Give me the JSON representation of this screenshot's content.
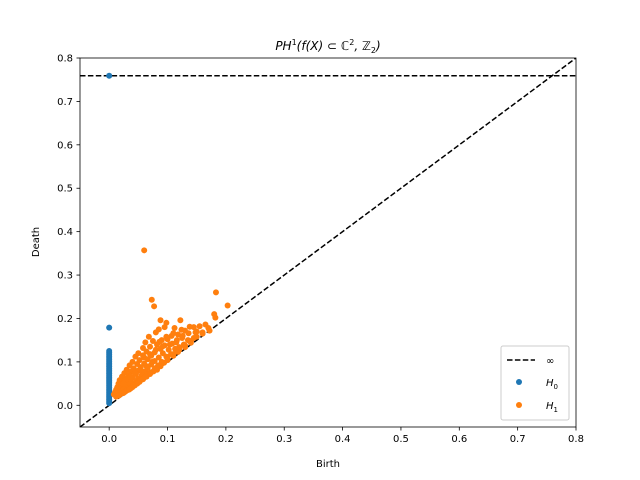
{
  "chart_data": {
    "type": "scatter",
    "title_parts": [
      "PH",
      "1",
      "(f(X) ⊂ ℂ",
      "2",
      ", ℤ",
      "2",
      ")"
    ],
    "xlabel": "Birth",
    "ylabel": "Death",
    "xlim": [
      -0.05,
      0.8
    ],
    "ylim": [
      -0.05,
      0.8
    ],
    "xticks": [
      0.0,
      0.1,
      0.2,
      0.3,
      0.4,
      0.5,
      0.6,
      0.7,
      0.8
    ],
    "xtick_labels": [
      "0.0",
      "0.1",
      "0.2",
      "0.3",
      "0.4",
      "0.5",
      "0.6",
      "0.7",
      "0.8"
    ],
    "yticks": [
      0.0,
      0.1,
      0.2,
      0.3,
      0.4,
      0.5,
      0.6,
      0.7,
      0.8
    ],
    "ytick_labels": [
      "0.0",
      "0.1",
      "0.2",
      "0.3",
      "0.4",
      "0.5",
      "0.6",
      "0.7",
      "0.8"
    ],
    "grid": false,
    "legend_position": "lower-right",
    "infinity_line": {
      "label": "∞",
      "y": 0.759,
      "color": "#000000",
      "style": "dashed"
    },
    "diagonal": {
      "color": "#000000",
      "style": "dashed"
    },
    "series": [
      {
        "name": "H",
        "subscript": "0",
        "color": "#1f77b4",
        "points": [
          [
            0.0,
            0.759
          ],
          [
            0.0,
            0.179
          ],
          [
            0.0,
            0.125
          ],
          [
            0.0,
            0.121
          ],
          [
            0.0,
            0.117
          ],
          [
            0.0,
            0.113
          ],
          [
            0.0,
            0.109
          ],
          [
            0.0,
            0.105
          ],
          [
            0.0,
            0.101
          ],
          [
            0.0,
            0.097
          ],
          [
            0.0,
            0.093
          ],
          [
            0.0,
            0.089
          ],
          [
            0.0,
            0.085
          ],
          [
            0.0,
            0.081
          ],
          [
            0.0,
            0.077
          ],
          [
            0.0,
            0.073
          ],
          [
            0.0,
            0.069
          ],
          [
            0.0,
            0.065
          ],
          [
            0.0,
            0.061
          ],
          [
            0.0,
            0.057
          ],
          [
            0.0,
            0.053
          ],
          [
            0.0,
            0.049
          ],
          [
            0.0,
            0.045
          ],
          [
            0.0,
            0.041
          ],
          [
            0.0,
            0.037
          ],
          [
            0.0,
            0.033
          ],
          [
            0.0,
            0.029
          ],
          [
            0.0,
            0.025
          ],
          [
            0.0,
            0.021
          ],
          [
            0.0,
            0.017
          ],
          [
            0.0,
            0.013
          ],
          [
            0.0,
            0.009
          ],
          [
            0.0,
            0.005
          ]
        ]
      },
      {
        "name": "H",
        "subscript": "1",
        "color": "#ff7f0e",
        "points": [
          [
            0.06,
            0.357
          ],
          [
            0.183,
            0.26
          ],
          [
            0.073,
            0.243
          ],
          [
            0.203,
            0.23
          ],
          [
            0.077,
            0.228
          ],
          [
            0.18,
            0.21
          ],
          [
            0.182,
            0.202
          ],
          [
            0.088,
            0.196
          ],
          [
            0.122,
            0.196
          ],
          [
            0.098,
            0.19
          ],
          [
            0.095,
            0.18
          ],
          [
            0.138,
            0.181
          ],
          [
            0.145,
            0.18
          ],
          [
            0.112,
            0.178
          ],
          [
            0.155,
            0.182
          ],
          [
            0.165,
            0.186
          ],
          [
            0.13,
            0.172
          ],
          [
            0.15,
            0.17
          ],
          [
            0.085,
            0.175
          ],
          [
            0.08,
            0.168
          ],
          [
            0.107,
            0.16
          ],
          [
            0.118,
            0.163
          ],
          [
            0.16,
            0.165
          ],
          [
            0.172,
            0.172
          ],
          [
            0.125,
            0.155
          ],
          [
            0.068,
            0.158
          ],
          [
            0.135,
            0.15
          ],
          [
            0.1,
            0.152
          ],
          [
            0.145,
            0.155
          ],
          [
            0.09,
            0.15
          ],
          [
            0.062,
            0.145
          ],
          [
            0.075,
            0.148
          ],
          [
            0.115,
            0.145
          ],
          [
            0.128,
            0.14
          ],
          [
            0.14,
            0.144
          ],
          [
            0.082,
            0.14
          ],
          [
            0.095,
            0.138
          ],
          [
            0.108,
            0.142
          ],
          [
            0.058,
            0.132
          ],
          [
            0.07,
            0.135
          ],
          [
            0.12,
            0.134
          ],
          [
            0.088,
            0.13
          ],
          [
            0.102,
            0.128
          ],
          [
            0.113,
            0.13
          ],
          [
            0.13,
            0.134
          ],
          [
            0.05,
            0.12
          ],
          [
            0.064,
            0.124
          ],
          [
            0.078,
            0.122
          ],
          [
            0.092,
            0.12
          ],
          [
            0.106,
            0.118
          ],
          [
            0.118,
            0.123
          ],
          [
            0.045,
            0.112
          ],
          [
            0.058,
            0.115
          ],
          [
            0.072,
            0.114
          ],
          [
            0.085,
            0.11
          ],
          [
            0.098,
            0.112
          ],
          [
            0.11,
            0.114
          ],
          [
            0.04,
            0.1
          ],
          [
            0.052,
            0.104
          ],
          [
            0.066,
            0.106
          ],
          [
            0.078,
            0.102
          ],
          [
            0.09,
            0.1
          ],
          [
            0.1,
            0.104
          ],
          [
            0.035,
            0.092
          ],
          [
            0.048,
            0.095
          ],
          [
            0.06,
            0.096
          ],
          [
            0.072,
            0.094
          ],
          [
            0.084,
            0.092
          ],
          [
            0.094,
            0.098
          ],
          [
            0.03,
            0.082
          ],
          [
            0.042,
            0.085
          ],
          [
            0.054,
            0.088
          ],
          [
            0.066,
            0.086
          ],
          [
            0.078,
            0.084
          ],
          [
            0.088,
            0.09
          ],
          [
            0.026,
            0.074
          ],
          [
            0.038,
            0.078
          ],
          [
            0.05,
            0.08
          ],
          [
            0.062,
            0.078
          ],
          [
            0.072,
            0.076
          ],
          [
            0.082,
            0.082
          ],
          [
            0.022,
            0.066
          ],
          [
            0.034,
            0.07
          ],
          [
            0.046,
            0.072
          ],
          [
            0.056,
            0.07
          ],
          [
            0.066,
            0.072
          ],
          [
            0.076,
            0.078
          ],
          [
            0.018,
            0.058
          ],
          [
            0.03,
            0.062
          ],
          [
            0.04,
            0.064
          ],
          [
            0.05,
            0.062
          ],
          [
            0.06,
            0.064
          ],
          [
            0.07,
            0.072
          ],
          [
            0.016,
            0.05
          ],
          [
            0.026,
            0.054
          ],
          [
            0.036,
            0.056
          ],
          [
            0.046,
            0.056
          ],
          [
            0.056,
            0.06
          ],
          [
            0.064,
            0.066
          ],
          [
            0.014,
            0.042
          ],
          [
            0.022,
            0.046
          ],
          [
            0.032,
            0.048
          ],
          [
            0.042,
            0.05
          ],
          [
            0.05,
            0.054
          ],
          [
            0.058,
            0.06
          ],
          [
            0.012,
            0.036
          ],
          [
            0.02,
            0.04
          ],
          [
            0.028,
            0.042
          ],
          [
            0.036,
            0.044
          ],
          [
            0.044,
            0.048
          ],
          [
            0.052,
            0.054
          ],
          [
            0.01,
            0.03
          ],
          [
            0.016,
            0.034
          ],
          [
            0.024,
            0.036
          ],
          [
            0.032,
            0.038
          ],
          [
            0.04,
            0.042
          ],
          [
            0.048,
            0.05
          ],
          [
            0.008,
            0.025
          ],
          [
            0.014,
            0.028
          ],
          [
            0.02,
            0.03
          ],
          [
            0.028,
            0.032
          ],
          [
            0.036,
            0.038
          ],
          [
            0.044,
            0.046
          ],
          [
            0.018,
            0.024
          ],
          [
            0.024,
            0.028
          ],
          [
            0.03,
            0.034
          ],
          [
            0.038,
            0.04
          ],
          [
            0.012,
            0.02
          ],
          [
            0.016,
            0.022
          ],
          [
            0.026,
            0.03
          ],
          [
            0.034,
            0.036
          ],
          [
            0.042,
            0.045
          ],
          [
            0.054,
            0.058
          ],
          [
            0.062,
            0.066
          ],
          [
            0.07,
            0.074
          ],
          [
            0.08,
            0.086
          ],
          [
            0.09,
            0.096
          ],
          [
            0.1,
            0.108
          ],
          [
            0.11,
            0.118
          ],
          [
            0.12,
            0.128
          ],
          [
            0.13,
            0.138
          ],
          [
            0.14,
            0.148
          ],
          [
            0.15,
            0.158
          ],
          [
            0.16,
            0.168
          ],
          [
            0.17,
            0.178
          ],
          [
            0.07,
            0.118
          ],
          [
            0.08,
            0.128
          ],
          [
            0.092,
            0.136
          ],
          [
            0.104,
            0.14
          ],
          [
            0.116,
            0.15
          ],
          [
            0.126,
            0.16
          ],
          [
            0.136,
            0.166
          ],
          [
            0.148,
            0.168
          ],
          [
            0.086,
            0.146
          ],
          [
            0.098,
            0.158
          ],
          [
            0.11,
            0.166
          ],
          [
            0.124,
            0.174
          ],
          [
            0.06,
            0.11
          ],
          [
            0.074,
            0.1
          ],
          [
            0.064,
            0.09
          ],
          [
            0.054,
            0.082
          ],
          [
            0.044,
            0.074
          ],
          [
            0.036,
            0.066
          ],
          [
            0.028,
            0.058
          ],
          [
            0.024,
            0.05
          ]
        ]
      }
    ]
  }
}
